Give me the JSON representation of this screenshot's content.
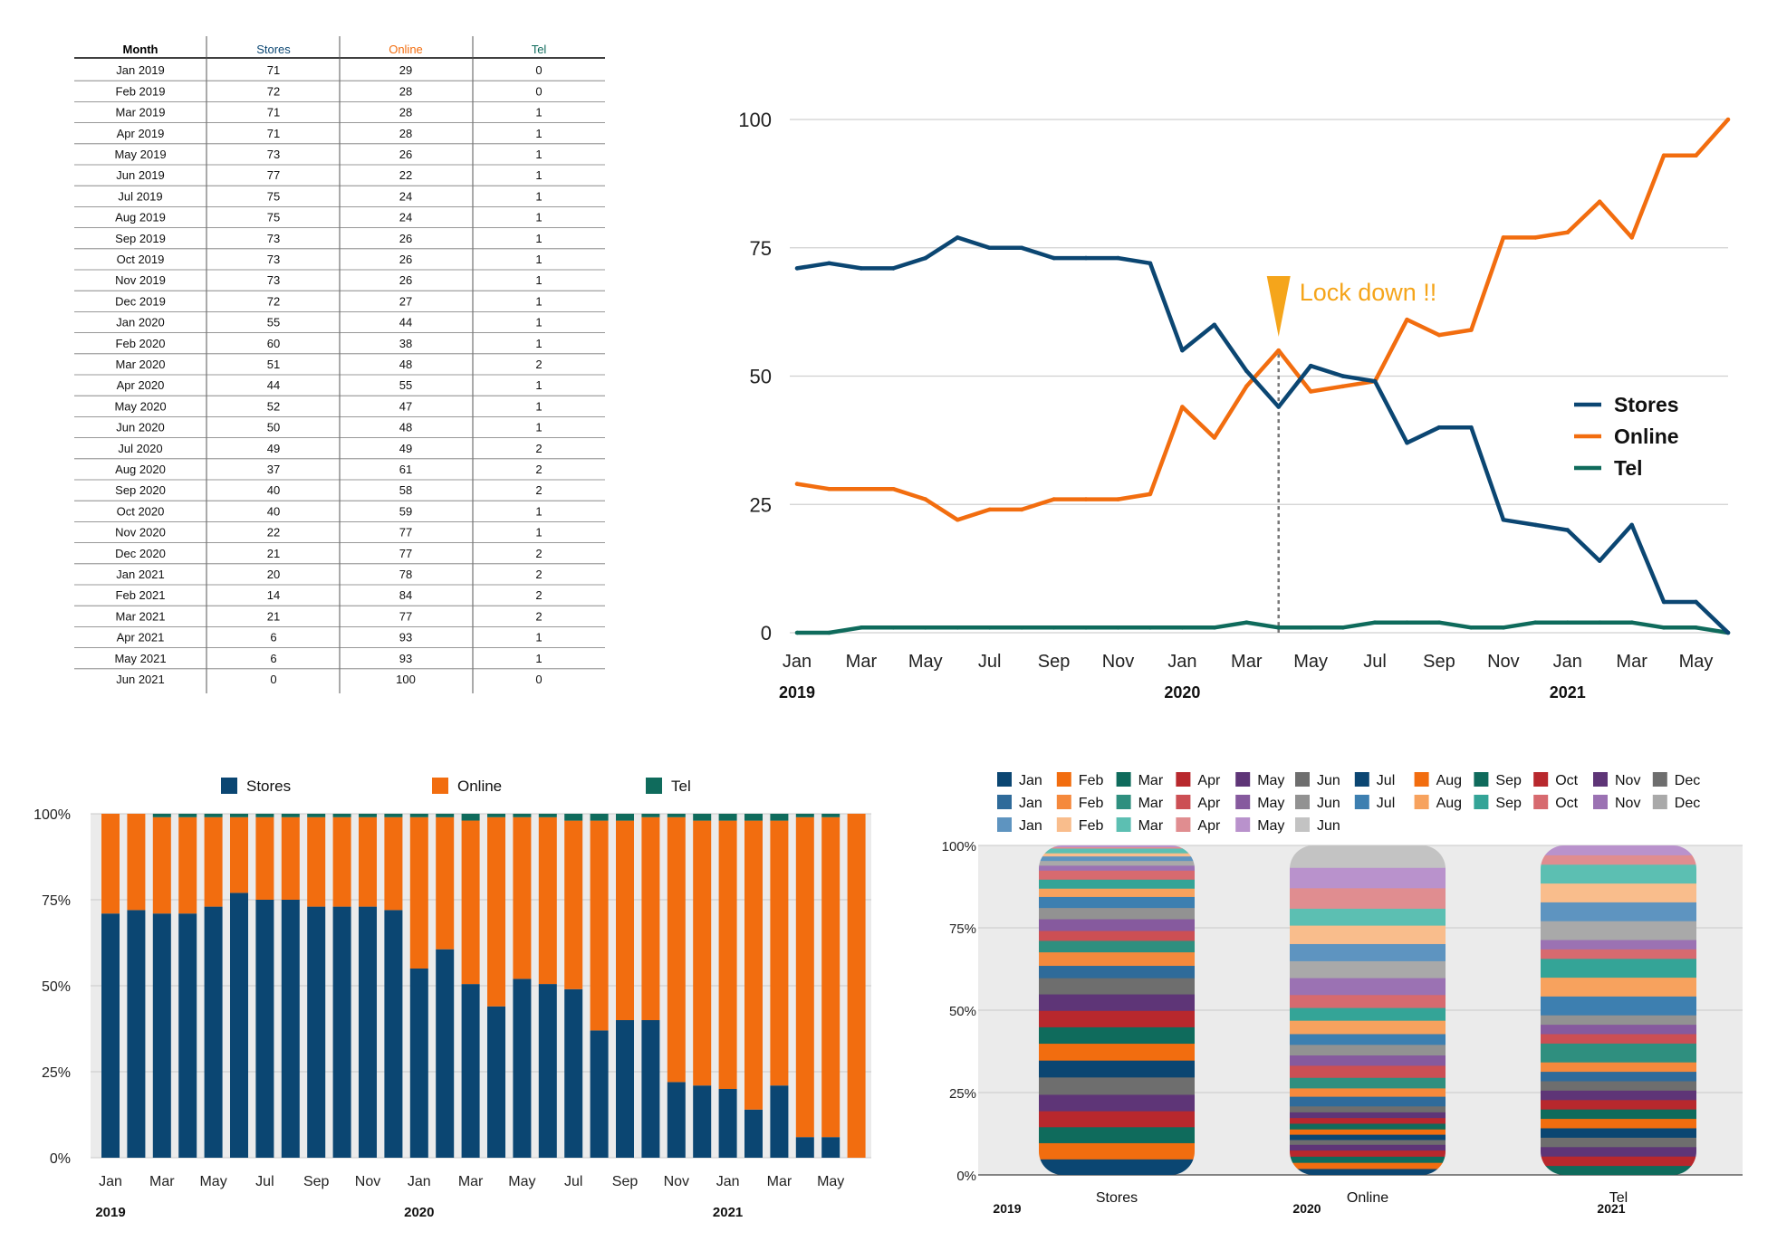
{
  "colors": {
    "stores": "#0b4672",
    "online": "#f26d0f",
    "tel": "#0f6b5c",
    "annotation": "#f5a51b",
    "grid": "#d0d0d0",
    "plot_bg": "#ebebeb",
    "axis_text": "#222222"
  },
  "months": [
    "Jan 2019",
    "Feb 2019",
    "Mar 2019",
    "Apr 2019",
    "May 2019",
    "Jun 2019",
    "Jul 2019",
    "Aug 2019",
    "Sep 2019",
    "Oct 2019",
    "Nov 2019",
    "Dec 2019",
    "Jan 2020",
    "Feb 2020",
    "Mar 2020",
    "Apr 2020",
    "May 2020",
    "Jun 2020",
    "Jul 2020",
    "Aug 2020",
    "Sep 2020",
    "Oct 2020",
    "Nov 2020",
    "Dec 2020",
    "Jan 2021",
    "Feb 2021",
    "Mar 2021",
    "Apr 2021",
    "May 2021",
    "Jun 2021"
  ],
  "stores": [
    71,
    72,
    71,
    71,
    73,
    77,
    75,
    75,
    73,
    73,
    73,
    72,
    55,
    60,
    51,
    44,
    52,
    50,
    49,
    37,
    40,
    40,
    22,
    21,
    20,
    14,
    21,
    6,
    6,
    0
  ],
  "online": [
    29,
    28,
    28,
    28,
    26,
    22,
    24,
    24,
    26,
    26,
    26,
    27,
    44,
    38,
    48,
    55,
    47,
    48,
    49,
    61,
    58,
    59,
    77,
    77,
    78,
    84,
    77,
    93,
    93,
    100
  ],
  "tel": [
    0,
    0,
    1,
    1,
    1,
    1,
    1,
    1,
    1,
    1,
    1,
    1,
    1,
    1,
    2,
    1,
    1,
    1,
    2,
    2,
    2,
    1,
    1,
    2,
    2,
    2,
    2,
    1,
    1,
    0
  ],
  "table": {
    "headers": {
      "month": "Month",
      "stores": "Stores",
      "online": "Online",
      "tel": "Tel"
    }
  },
  "chart_data": [
    {
      "id": "line",
      "type": "line",
      "x_tick_labels": [
        "Jan",
        "Mar",
        "May",
        "Jul",
        "Sep",
        "Nov",
        "Jan",
        "Mar",
        "May",
        "Jul",
        "Sep",
        "Nov",
        "Jan",
        "Mar",
        "May"
      ],
      "x_year_labels": [
        "2019",
        "2020",
        "2021"
      ],
      "y_ticks": [
        0,
        25,
        50,
        75,
        100
      ],
      "ylim": [
        0,
        100
      ],
      "grid": true,
      "legend": {
        "placement": "right",
        "entries": [
          "Stores",
          "Online",
          "Tel"
        ]
      },
      "annotation": {
        "text": "Lock down !!",
        "at": "Apr 2020"
      },
      "series": [
        {
          "name": "Stores",
          "ref": "stores"
        },
        {
          "name": "Online",
          "ref": "online"
        },
        {
          "name": "Tel",
          "ref": "tel"
        }
      ]
    },
    {
      "id": "stacked",
      "type": "bar",
      "stacked": "percent",
      "x_tick_labels": [
        "Jan",
        "Mar",
        "May",
        "Jul",
        "Sep",
        "Nov",
        "Jan",
        "Mar",
        "May",
        "Jul",
        "Sep",
        "Nov",
        "Jan",
        "Mar",
        "May"
      ],
      "x_year_labels": [
        "2019",
        "2020",
        "2021"
      ],
      "y_ticks": [
        "0%",
        "25%",
        "50%",
        "75%",
        "100%"
      ],
      "legend": {
        "placement": "top",
        "entries": [
          "Stores",
          "Online",
          "Tel"
        ]
      },
      "series": [
        {
          "name": "Stores",
          "ref": "stores"
        },
        {
          "name": "Online",
          "ref": "online"
        },
        {
          "name": "Tel",
          "ref": "tel"
        }
      ]
    },
    {
      "id": "mosaic",
      "type": "bar",
      "stacked": "percent",
      "categories": [
        "Stores",
        "Online",
        "Tel"
      ],
      "x_year_labels": [
        "2019",
        "2020",
        "2021"
      ],
      "y_ticks": [
        "0%",
        "25%",
        "50%",
        "75%",
        "100%"
      ],
      "legend": {
        "placement": "top",
        "rows": [
          [
            "Jan",
            "Feb",
            "Mar",
            "Apr",
            "May",
            "Jun",
            "Jul",
            "Aug",
            "Sep",
            "Oct",
            "Nov",
            "Dec"
          ],
          [
            "Jan",
            "Feb",
            "Mar",
            "Apr",
            "May",
            "Jun",
            "Jul",
            "Aug",
            "Sep",
            "Oct",
            "Nov",
            "Dec"
          ],
          [
            "Jan",
            "Feb",
            "Mar",
            "Apr",
            "May",
            "Jun"
          ]
        ]
      },
      "month_colors": [
        [
          "#0b4672",
          "#f26d0f",
          "#0f6b5c",
          "#b8282d",
          "#5e3577",
          "#6e6e6e",
          "#0b4672",
          "#f26d0f",
          "#0f6b5c",
          "#b8282d",
          "#5e3577",
          "#6e6e6e"
        ],
        [
          "#2f6b9a",
          "#f5893c",
          "#2f8f7f",
          "#cc4f54",
          "#865a9e",
          "#929292",
          "#3d7fb0",
          "#f7a25e",
          "#34a497",
          "#d76a6f",
          "#9b72b3",
          "#a9a9a9"
        ],
        [
          "#5e94c0",
          "#f9bd8c",
          "#5cbfb2",
          "#e08d90",
          "#b992cc",
          "#c3c3c3"
        ]
      ]
    }
  ]
}
